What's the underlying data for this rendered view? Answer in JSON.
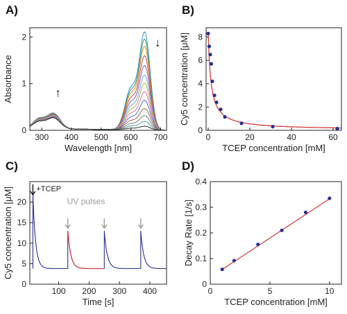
{
  "chart_data": [
    {
      "id": "A",
      "panel_label": "A)",
      "type": "line",
      "xlabel": "Wavelength [nm]",
      "ylabel": "Absorbance",
      "xlim": [
        260,
        720
      ],
      "ylim": [
        0,
        2.2
      ],
      "xticks": [
        300,
        400,
        500,
        600,
        700
      ],
      "yticks": [
        0,
        1,
        2
      ],
      "grid": false,
      "series_count": 13,
      "series_colors": [
        "#3a8fc7",
        "#2e9e6a",
        "#d98a2b",
        "#c94a3a",
        "#8e5bb5",
        "#6fa8dc",
        "#b7b34a",
        "#e06ca8",
        "#4a6fd0",
        "#9a6a3a",
        "#7a7a7a",
        "#4a9a9a",
        "#2a2a2a"
      ],
      "peak_max_values": [
        2.05,
        1.9,
        1.75,
        1.55,
        1.35,
        1.15,
        0.98,
        0.8,
        0.62,
        0.45,
        0.3,
        0.18,
        0.08
      ],
      "uv_peak_values": [
        0.33,
        0.32,
        0.31,
        0.3,
        0.29,
        0.28,
        0.27,
        0.26,
        0.25,
        0.24,
        0.24,
        0.23,
        0.23
      ],
      "annotations": [
        {
          "symbol": "↑",
          "x": 355,
          "y": 0.72
        },
        {
          "symbol": "↓",
          "x": 690,
          "y": 1.8
        }
      ]
    },
    {
      "id": "B",
      "panel_label": "B)",
      "type": "scatter",
      "xlabel": "TCEP concentration [mM]",
      "ylabel": "Cy5 concentration [μM]",
      "xlim": [
        -1,
        64
      ],
      "ylim": [
        0,
        8.8
      ],
      "xticks": [
        0,
        20,
        40,
        60
      ],
      "yticks": [
        0,
        2,
        4,
        6,
        8
      ],
      "grid": false,
      "points": {
        "x": [
          0,
          0.5,
          1,
          1.5,
          2,
          3,
          4,
          6,
          8,
          16,
          31,
          62
        ],
        "y": [
          8.3,
          7.2,
          6.5,
          5.7,
          4.2,
          3.0,
          2.4,
          1.8,
          1.15,
          0.6,
          0.32,
          0.15
        ]
      },
      "fit_color": "#d63b3b",
      "marker_color": "#2b2f8f"
    },
    {
      "id": "C",
      "panel_label": "C)",
      "type": "line",
      "xlabel": "Time [s]",
      "ylabel": "Cy5 concentration [μM]",
      "xlim": [
        5,
        455
      ],
      "ylim": [
        0,
        25
      ],
      "xticks": [
        100,
        200,
        300,
        400
      ],
      "yticks": [
        0,
        5,
        10,
        15,
        20
      ],
      "grid": false,
      "pulses": [
        {
          "t": 15,
          "peak": 22.0
        },
        {
          "t": 130,
          "peak": 13.0
        },
        {
          "t": 250,
          "peak": 13.0
        },
        {
          "t": 370,
          "peak": 13.0
        }
      ],
      "baseline": 3.8,
      "data_color": "#2b2f8f",
      "fit_color": "#d63b3b",
      "annotations": [
        {
          "text": "+TCEP",
          "t": 15,
          "y": 22.0
        },
        {
          "text": "UV pulses",
          "t": 190,
          "y": 19.5
        }
      ]
    },
    {
      "id": "D",
      "panel_label": "D)",
      "type": "scatter",
      "xlabel": "TCEP concentration [mM]",
      "ylabel": "Decay Rate [1/s]",
      "xlim": [
        0,
        11
      ],
      "ylim": [
        0,
        0.4
      ],
      "xticks": [
        0,
        5,
        10
      ],
      "yticks": [
        0,
        0.1,
        0.2,
        0.3,
        0.4
      ],
      "ytick_labels": [
        "0",
        "0.1",
        "0.2",
        "0.3",
        "0.4"
      ],
      "grid": false,
      "points": {
        "x": [
          1,
          2,
          4,
          6,
          8,
          10
        ],
        "y": [
          0.058,
          0.092,
          0.155,
          0.21,
          0.28,
          0.335
        ]
      },
      "fit": {
        "slope": 0.0306,
        "intercept": 0.027
      },
      "fit_color": "#d63b3b",
      "marker_color": "#2b2f8f"
    }
  ]
}
